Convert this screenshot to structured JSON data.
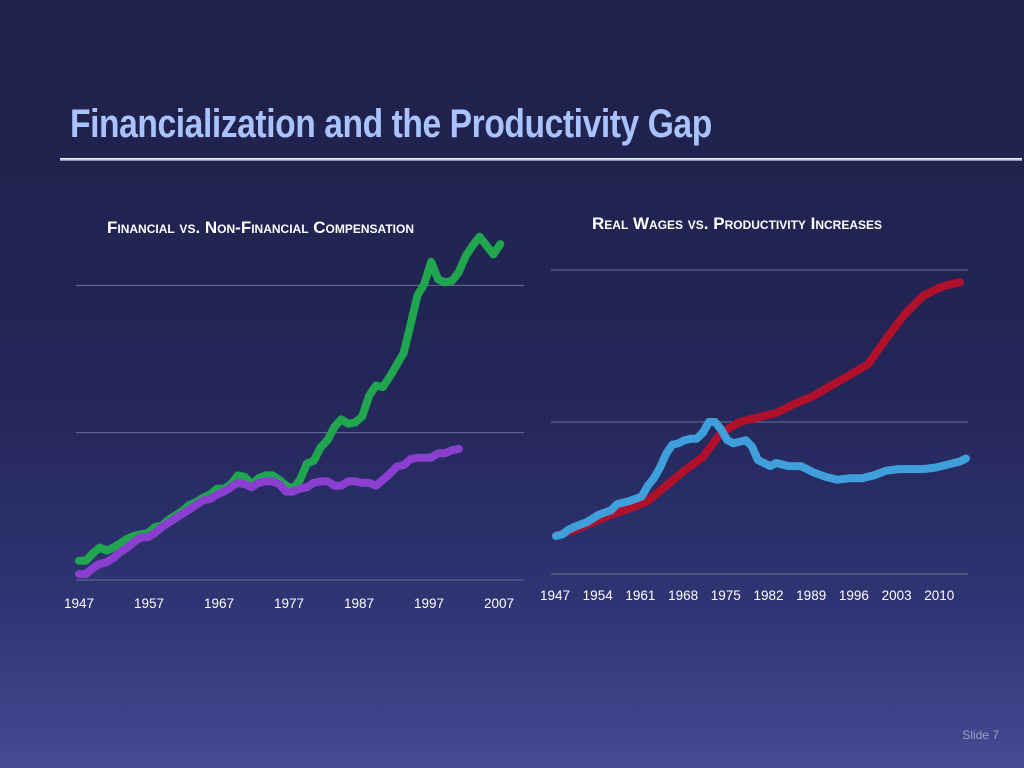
{
  "slide": {
    "title": "Financialization and the Productivity Gap",
    "number_label": "Slide 7"
  },
  "chart_data": [
    {
      "type": "line",
      "title": "Financial vs. Non-Financial Compensation",
      "x_ticks": [
        "1947",
        "1957",
        "1967",
        "1977",
        "1987",
        "1997",
        "2007"
      ],
      "x_range": [
        1947,
        2011
      ],
      "y_range": [
        0,
        3
      ],
      "y_gridlines": [
        0,
        1,
        2
      ],
      "series": [
        {
          "color": "#1fa64f",
          "points": [
            [
              1947,
              0.13
            ],
            [
              1948,
              0.13
            ],
            [
              1949,
              0.18
            ],
            [
              1950,
              0.22
            ],
            [
              1951,
              0.2
            ],
            [
              1952,
              0.22
            ],
            [
              1953,
              0.25
            ],
            [
              1954,
              0.28
            ],
            [
              1955,
              0.3
            ],
            [
              1956,
              0.31
            ],
            [
              1957,
              0.32
            ],
            [
              1958,
              0.36
            ],
            [
              1959,
              0.37
            ],
            [
              1960,
              0.41
            ],
            [
              1961,
              0.44
            ],
            [
              1962,
              0.47
            ],
            [
              1963,
              0.51
            ],
            [
              1964,
              0.53
            ],
            [
              1965,
              0.56
            ],
            [
              1966,
              0.58
            ],
            [
              1967,
              0.62
            ],
            [
              1968,
              0.62
            ],
            [
              1969,
              0.65
            ],
            [
              1970,
              0.71
            ],
            [
              1971,
              0.7
            ],
            [
              1972,
              0.65
            ],
            [
              1973,
              0.69
            ],
            [
              1974,
              0.71
            ],
            [
              1975,
              0.71
            ],
            [
              1976,
              0.68
            ],
            [
              1977,
              0.64
            ],
            [
              1978,
              0.62
            ],
            [
              1979,
              0.68
            ],
            [
              1980,
              0.79
            ],
            [
              1981,
              0.81
            ],
            [
              1982,
              0.9
            ],
            [
              1983,
              0.95
            ],
            [
              1984,
              1.04
            ],
            [
              1985,
              1.09
            ],
            [
              1986,
              1.06
            ],
            [
              1987,
              1.07
            ],
            [
              1988,
              1.11
            ],
            [
              1989,
              1.25
            ],
            [
              1990,
              1.32
            ],
            [
              1991,
              1.31
            ],
            [
              1992,
              1.38
            ],
            [
              1993,
              1.46
            ],
            [
              1994,
              1.54
            ],
            [
              1995,
              1.73
            ],
            [
              1996,
              1.93
            ],
            [
              1997,
              2.01
            ],
            [
              1998,
              2.16
            ],
            [
              1999,
              2.04
            ],
            [
              2000,
              2.02
            ],
            [
              2001,
              2.03
            ],
            [
              2002,
              2.09
            ],
            [
              2003,
              2.2
            ],
            [
              2004,
              2.27
            ],
            [
              2005,
              2.33
            ],
            [
              2006,
              2.27
            ],
            [
              2007,
              2.21
            ],
            [
              2008,
              2.28
            ]
          ]
        },
        {
          "color": "#8a3fd0",
          "points": [
            [
              1947,
              0.04
            ],
            [
              1948,
              0.04
            ],
            [
              1949,
              0.08
            ],
            [
              1950,
              0.11
            ],
            [
              1951,
              0.12
            ],
            [
              1952,
              0.15
            ],
            [
              1953,
              0.19
            ],
            [
              1954,
              0.22
            ],
            [
              1955,
              0.26
            ],
            [
              1956,
              0.29
            ],
            [
              1957,
              0.29
            ],
            [
              1958,
              0.32
            ],
            [
              1959,
              0.36
            ],
            [
              1960,
              0.39
            ],
            [
              1961,
              0.42
            ],
            [
              1962,
              0.45
            ],
            [
              1963,
              0.48
            ],
            [
              1964,
              0.51
            ],
            [
              1965,
              0.54
            ],
            [
              1966,
              0.55
            ],
            [
              1967,
              0.58
            ],
            [
              1968,
              0.6
            ],
            [
              1969,
              0.63
            ],
            [
              1970,
              0.66
            ],
            [
              1971,
              0.65
            ],
            [
              1972,
              0.63
            ],
            [
              1973,
              0.66
            ],
            [
              1974,
              0.67
            ],
            [
              1975,
              0.67
            ],
            [
              1976,
              0.65
            ],
            [
              1977,
              0.6
            ],
            [
              1978,
              0.6
            ],
            [
              1979,
              0.62
            ],
            [
              1980,
              0.63
            ],
            [
              1981,
              0.66
            ],
            [
              1982,
              0.67
            ],
            [
              1983,
              0.67
            ],
            [
              1984,
              0.64
            ],
            [
              1985,
              0.64
            ],
            [
              1986,
              0.67
            ],
            [
              1987,
              0.67
            ],
            [
              1988,
              0.66
            ],
            [
              1989,
              0.66
            ],
            [
              1990,
              0.64
            ],
            [
              1991,
              0.68
            ],
            [
              1992,
              0.72
            ],
            [
              1993,
              0.77
            ],
            [
              1994,
              0.78
            ],
            [
              1995,
              0.82
            ],
            [
              1996,
              0.83
            ],
            [
              1997,
              0.83
            ],
            [
              1998,
              0.83
            ],
            [
              1999,
              0.86
            ],
            [
              2000,
              0.86
            ],
            [
              2001,
              0.88
            ],
            [
              2002,
              0.89
            ]
          ]
        }
      ]
    },
    {
      "type": "line",
      "title": "Real Wages vs. Productivity Increases",
      "x_ticks": [
        "1947",
        "1954",
        "1961",
        "1968",
        "1975",
        "1982",
        "1989",
        "1996",
        "2003",
        "2010"
      ],
      "x_range": [
        1947,
        2014
      ],
      "y_range": [
        0,
        2
      ],
      "y_gridlines": [
        0,
        1,
        2
      ],
      "series": [
        {
          "color": "#b0102a",
          "points": [
            [
              1947,
              0.25
            ],
            [
              1950,
              0.29
            ],
            [
              1953,
              0.34
            ],
            [
              1956,
              0.39
            ],
            [
              1959,
              0.43
            ],
            [
              1962,
              0.48
            ],
            [
              1965,
              0.58
            ],
            [
              1968,
              0.68
            ],
            [
              1971,
              0.77
            ],
            [
              1974,
              0.93
            ],
            [
              1977,
              1.0
            ],
            [
              1980,
              1.03
            ],
            [
              1983,
              1.06
            ],
            [
              1986,
              1.12
            ],
            [
              1989,
              1.17
            ],
            [
              1992,
              1.24
            ],
            [
              1995,
              1.31
            ],
            [
              1998,
              1.38
            ],
            [
              2001,
              1.55
            ],
            [
              2004,
              1.71
            ],
            [
              2007,
              1.83
            ],
            [
              2010,
              1.89
            ],
            [
              2013,
              1.92
            ]
          ]
        },
        {
          "color": "#3f9fdb",
          "points": [
            [
              1947,
              0.25
            ],
            [
              1948,
              0.26
            ],
            [
              1949,
              0.29
            ],
            [
              1950,
              0.31
            ],
            [
              1952,
              0.34
            ],
            [
              1954,
              0.39
            ],
            [
              1956,
              0.42
            ],
            [
              1957,
              0.46
            ],
            [
              1959,
              0.48
            ],
            [
              1961,
              0.51
            ],
            [
              1962,
              0.58
            ],
            [
              1963,
              0.63
            ],
            [
              1964,
              0.7
            ],
            [
              1965,
              0.79
            ],
            [
              1966,
              0.85
            ],
            [
              1967,
              0.86
            ],
            [
              1968,
              0.88
            ],
            [
              1969,
              0.89
            ],
            [
              1970,
              0.89
            ],
            [
              1971,
              0.93
            ],
            [
              1972,
              1.0
            ],
            [
              1973,
              1.0
            ],
            [
              1974,
              0.95
            ],
            [
              1975,
              0.88
            ],
            [
              1976,
              0.86
            ],
            [
              1977,
              0.87
            ],
            [
              1978,
              0.88
            ],
            [
              1979,
              0.84
            ],
            [
              1980,
              0.75
            ],
            [
              1982,
              0.71
            ],
            [
              1983,
              0.73
            ],
            [
              1985,
              0.71
            ],
            [
              1987,
              0.71
            ],
            [
              1989,
              0.67
            ],
            [
              1991,
              0.64
            ],
            [
              1993,
              0.62
            ],
            [
              1995,
              0.63
            ],
            [
              1997,
              0.63
            ],
            [
              1999,
              0.65
            ],
            [
              2001,
              0.68
            ],
            [
              2003,
              0.69
            ],
            [
              2005,
              0.69
            ],
            [
              2007,
              0.69
            ],
            [
              2009,
              0.7
            ],
            [
              2011,
              0.72
            ],
            [
              2013,
              0.74
            ],
            [
              2014,
              0.76
            ]
          ]
        }
      ]
    }
  ]
}
